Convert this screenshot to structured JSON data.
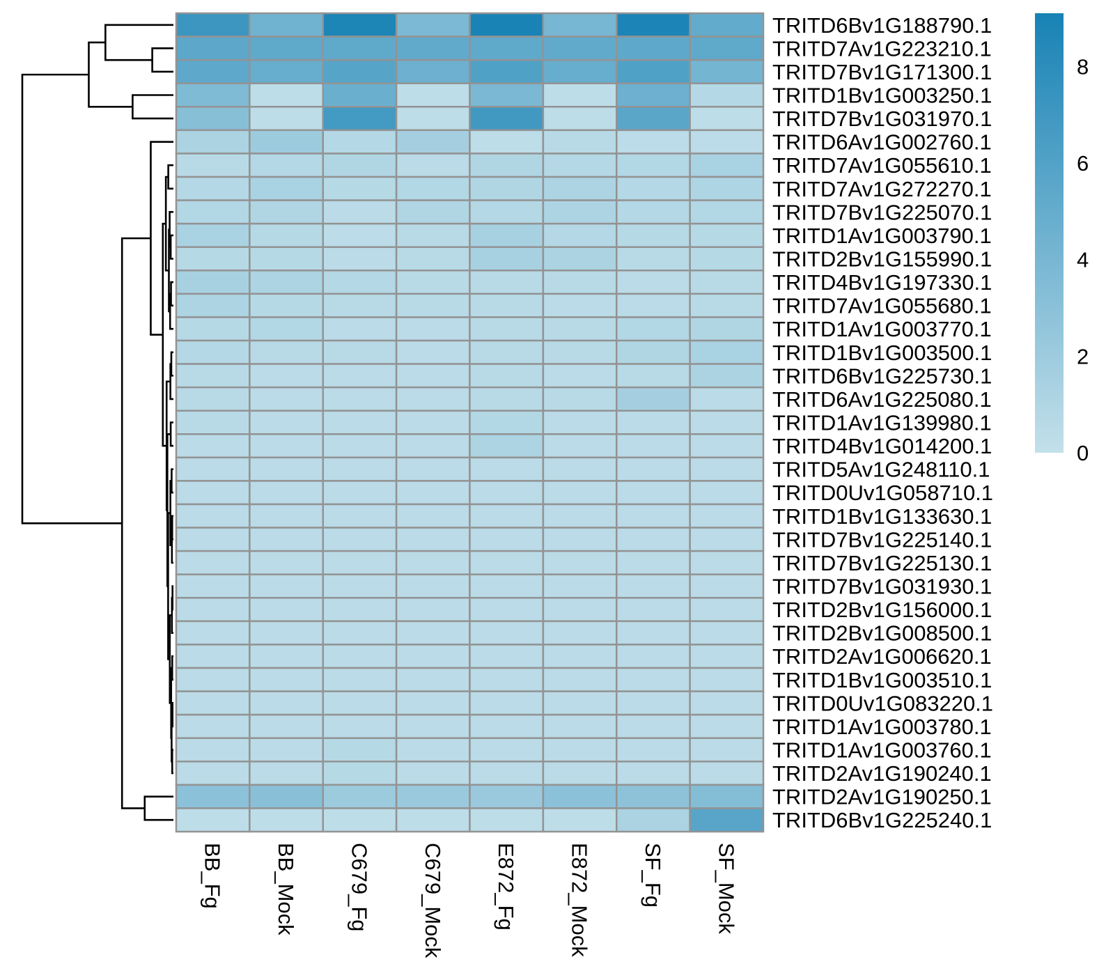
{
  "chart_data": {
    "type": "heatmap",
    "title": "",
    "xlabel": "",
    "ylabel": "",
    "columns": [
      "BB_Fg",
      "BB_Mock",
      "C679_Fg",
      "C679_Mock",
      "E872_Fg",
      "E872_Mock",
      "SF_Fg",
      "SF_Mock"
    ],
    "rows": [
      "TRITD6Bv1G188790.1",
      "TRITD7Av1G223210.1",
      "TRITD7Bv1G171300.1",
      "TRITD1Bv1G003250.1",
      "TRITD7Bv1G031970.1",
      "TRITD6Av1G002760.1",
      "TRITD7Av1G055610.1",
      "TRITD7Av1G272270.1",
      "TRITD7Bv1G225070.1",
      "TRITD1Av1G003790.1",
      "TRITD2Bv1G155990.1",
      "TRITD4Bv1G197330.1",
      "TRITD7Av1G055680.1",
      "TRITD1Av1G003770.1",
      "TRITD1Bv1G003500.1",
      "TRITD6Bv1G225730.1",
      "TRITD6Av1G225080.1",
      "TRITD1Av1G139980.1",
      "TRITD4Bv1G014200.1",
      "TRITD5Av1G248110.1",
      "TRITD0Uv1G058710.1",
      "TRITD1Bv1G133630.1",
      "TRITD7Bv1G225140.1",
      "TRITD7Bv1G225130.1",
      "TRITD7Bv1G031930.1",
      "TRITD2Bv1G156000.1",
      "TRITD2Bv1G008500.1",
      "TRITD2Av1G006620.1",
      "TRITD1Bv1G003510.1",
      "TRITD0Uv1G083220.1",
      "TRITD1Av1G003780.1",
      "TRITD1Av1G003760.1",
      "TRITD2Av1G190240.1",
      "TRITD2Av1G190250.1",
      "TRITD6Bv1G225240.1"
    ],
    "values": [
      [
        7.2,
        4.4,
        8.8,
        3.8,
        9.0,
        4.0,
        8.9,
        5.1
      ],
      [
        5.5,
        5.3,
        5.3,
        5.2,
        5.3,
        5.2,
        5.4,
        5.3
      ],
      [
        5.4,
        4.9,
        5.8,
        4.6,
        6.1,
        4.9,
        6.1,
        4.2
      ],
      [
        3.6,
        0.3,
        4.7,
        0.3,
        3.9,
        0.3,
        4.6,
        0.8
      ],
      [
        3.2,
        0.3,
        6.8,
        0.3,
        6.9,
        0.3,
        5.6,
        0.3
      ],
      [
        1.3,
        2.0,
        0.8,
        1.6,
        0.3,
        0.6,
        0.4,
        0.4
      ],
      [
        0.6,
        0.8,
        1.0,
        0.5,
        1.0,
        0.8,
        0.9,
        1.4
      ],
      [
        0.8,
        1.4,
        0.7,
        0.9,
        1.0,
        1.2,
        0.8,
        1.1
      ],
      [
        0.9,
        1.0,
        0.5,
        1.0,
        0.8,
        1.2,
        0.8,
        0.9
      ],
      [
        1.4,
        0.7,
        0.4,
        0.6,
        1.5,
        0.8,
        0.7,
        0.7
      ],
      [
        0.7,
        0.7,
        0.5,
        0.6,
        1.5,
        1.3,
        0.6,
        0.7
      ],
      [
        1.5,
        1.2,
        0.8,
        0.6,
        0.6,
        0.6,
        0.5,
        0.6
      ],
      [
        1.2,
        0.7,
        0.6,
        0.6,
        0.6,
        0.5,
        0.5,
        0.6
      ],
      [
        0.7,
        0.9,
        0.5,
        0.5,
        0.6,
        0.6,
        0.9,
        1.0
      ],
      [
        0.8,
        0.6,
        0.6,
        0.5,
        0.6,
        0.6,
        1.0,
        1.4
      ],
      [
        0.6,
        0.5,
        0.5,
        0.5,
        0.6,
        0.5,
        0.6,
        1.3
      ],
      [
        0.6,
        0.5,
        0.5,
        0.5,
        0.6,
        0.6,
        1.6,
        0.5
      ],
      [
        0.6,
        0.5,
        0.5,
        0.5,
        0.9,
        0.5,
        0.5,
        0.5
      ],
      [
        0.5,
        0.5,
        0.5,
        0.5,
        1.2,
        0.5,
        0.5,
        0.5
      ],
      [
        0.5,
        0.5,
        0.5,
        0.5,
        0.5,
        0.5,
        0.5,
        0.5
      ],
      [
        0.5,
        0.5,
        0.5,
        0.5,
        0.5,
        0.5,
        0.5,
        0.5
      ],
      [
        0.5,
        0.5,
        0.5,
        0.5,
        0.5,
        0.5,
        0.5,
        0.5
      ],
      [
        0.5,
        0.5,
        0.5,
        0.5,
        0.5,
        0.5,
        0.5,
        0.5
      ],
      [
        0.5,
        0.5,
        0.5,
        0.5,
        0.5,
        0.5,
        0.5,
        0.5
      ],
      [
        0.5,
        0.5,
        0.5,
        0.5,
        0.5,
        0.5,
        0.5,
        0.5
      ],
      [
        0.5,
        0.5,
        0.5,
        0.5,
        0.5,
        0.5,
        0.5,
        0.5
      ],
      [
        0.5,
        0.5,
        0.5,
        0.5,
        0.5,
        0.5,
        0.5,
        0.5
      ],
      [
        0.5,
        0.5,
        0.5,
        0.5,
        0.5,
        0.5,
        0.5,
        0.5
      ],
      [
        0.5,
        0.5,
        0.5,
        0.5,
        0.5,
        0.5,
        0.5,
        0.5
      ],
      [
        0.5,
        0.5,
        0.5,
        0.5,
        0.5,
        0.5,
        0.5,
        0.5
      ],
      [
        0.5,
        0.5,
        0.5,
        0.5,
        0.5,
        0.5,
        0.5,
        0.5
      ],
      [
        0.5,
        0.5,
        0.7,
        0.5,
        0.5,
        0.5,
        0.5,
        0.5
      ],
      [
        0.5,
        0.5,
        0.7,
        0.5,
        0.5,
        0.5,
        0.5,
        0.5
      ],
      [
        3.0,
        3.1,
        2.0,
        2.2,
        2.2,
        3.0,
        2.9,
        3.4
      ],
      [
        0.3,
        0.3,
        0.3,
        0.3,
        0.3,
        0.3,
        1.3,
        5.7
      ]
    ],
    "color_range": [
      0,
      9.1
    ],
    "color_low": "#c3e0ea",
    "color_high": "#1882b5",
    "legend": {
      "ticks": [
        8,
        6,
        4,
        2,
        0
      ],
      "placement": "right"
    },
    "row_dendrogram": true,
    "grid": true
  }
}
